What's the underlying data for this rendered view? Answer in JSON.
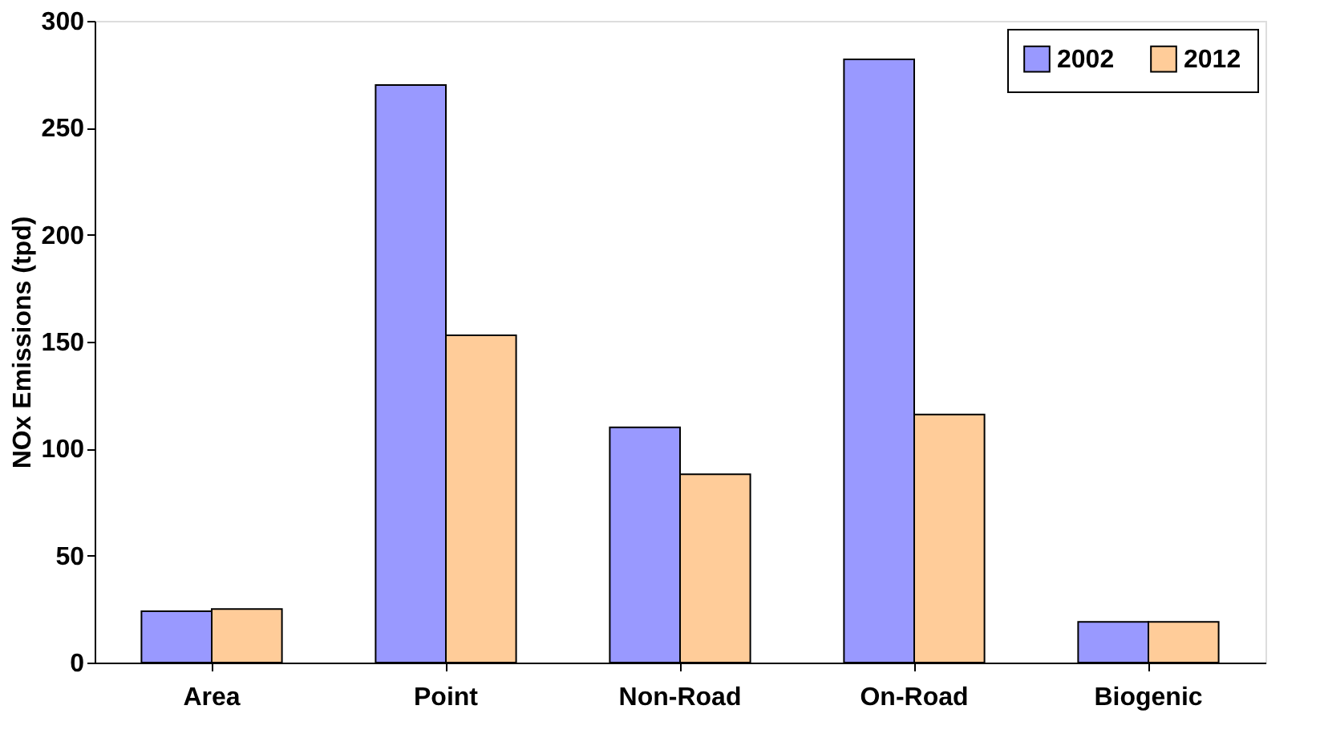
{
  "chart_data": {
    "type": "bar",
    "ylabel": "NOx Emissions (tpd)",
    "categories": [
      "Area",
      "Point",
      "Non-Road",
      "On-Road",
      "Biogenic"
    ],
    "series": [
      {
        "name": "2002",
        "color": "#9999ff",
        "values": [
          24,
          270,
          110,
          282,
          19
        ]
      },
      {
        "name": "2012",
        "color": "#ffcc99",
        "values": [
          25,
          153,
          88,
          116,
          19
        ]
      }
    ],
    "ylim": [
      0,
      300
    ],
    "yticks": [
      0,
      50,
      100,
      150,
      200,
      250,
      300
    ],
    "grid": false,
    "legend": "top right"
  }
}
